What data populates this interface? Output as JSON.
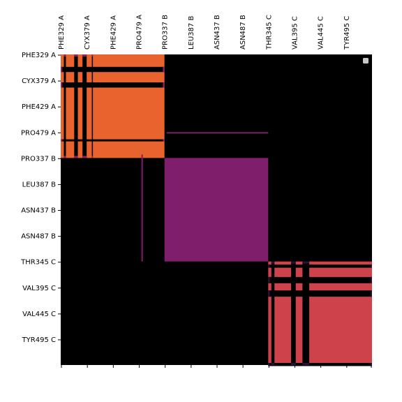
{
  "chart_data": {
    "type": "heatmap",
    "x_tick_labels": [
      "PHE329 A",
      "CYX379 A",
      "PHE429 A",
      "PRO479 A",
      "PRO337 B",
      "LEU387 B",
      "ASN437 B",
      "ASN487 B",
      "THR345 C",
      "VAL395 C",
      "VAL445 C",
      "TYR495 C"
    ],
    "y_tick_labels": [
      "PHE329 A",
      "CYX379 A",
      "PHE429 A",
      "PRO479 A",
      "PRO337 B",
      "LEU387 B",
      "ASN437 B",
      "ASN487 B",
      "THR345 C",
      "VAL395 C",
      "VAL445 C",
      "TYR495 C"
    ],
    "background_color": "#000000",
    "legend": {
      "placement": "top-right",
      "marker_color": "#c8c8c8"
    },
    "blocks": [
      {
        "group": "A",
        "rows": [
          "PHE329 A",
          "PRO479 A"
        ],
        "cols": [
          "PHE329 A",
          "PRO479 A"
        ],
        "color": "#e8632e"
      },
      {
        "group": "B",
        "rows": [
          "PRO337 B",
          "ASN487 B"
        ],
        "cols": [
          "PRO337 B",
          "ASN487 B"
        ],
        "color": "#7f1f6b"
      },
      {
        "group": "C",
        "rows": [
          "THR345 C",
          "TYR495 C"
        ],
        "cols": [
          "THR345 C",
          "TYR495 C"
        ],
        "color": "#cd424b"
      }
    ],
    "gap_color": "#000000",
    "gap_intersection_colors": {
      "A": "#8e2466",
      "B": "#000000",
      "C": "#2a103c"
    }
  }
}
